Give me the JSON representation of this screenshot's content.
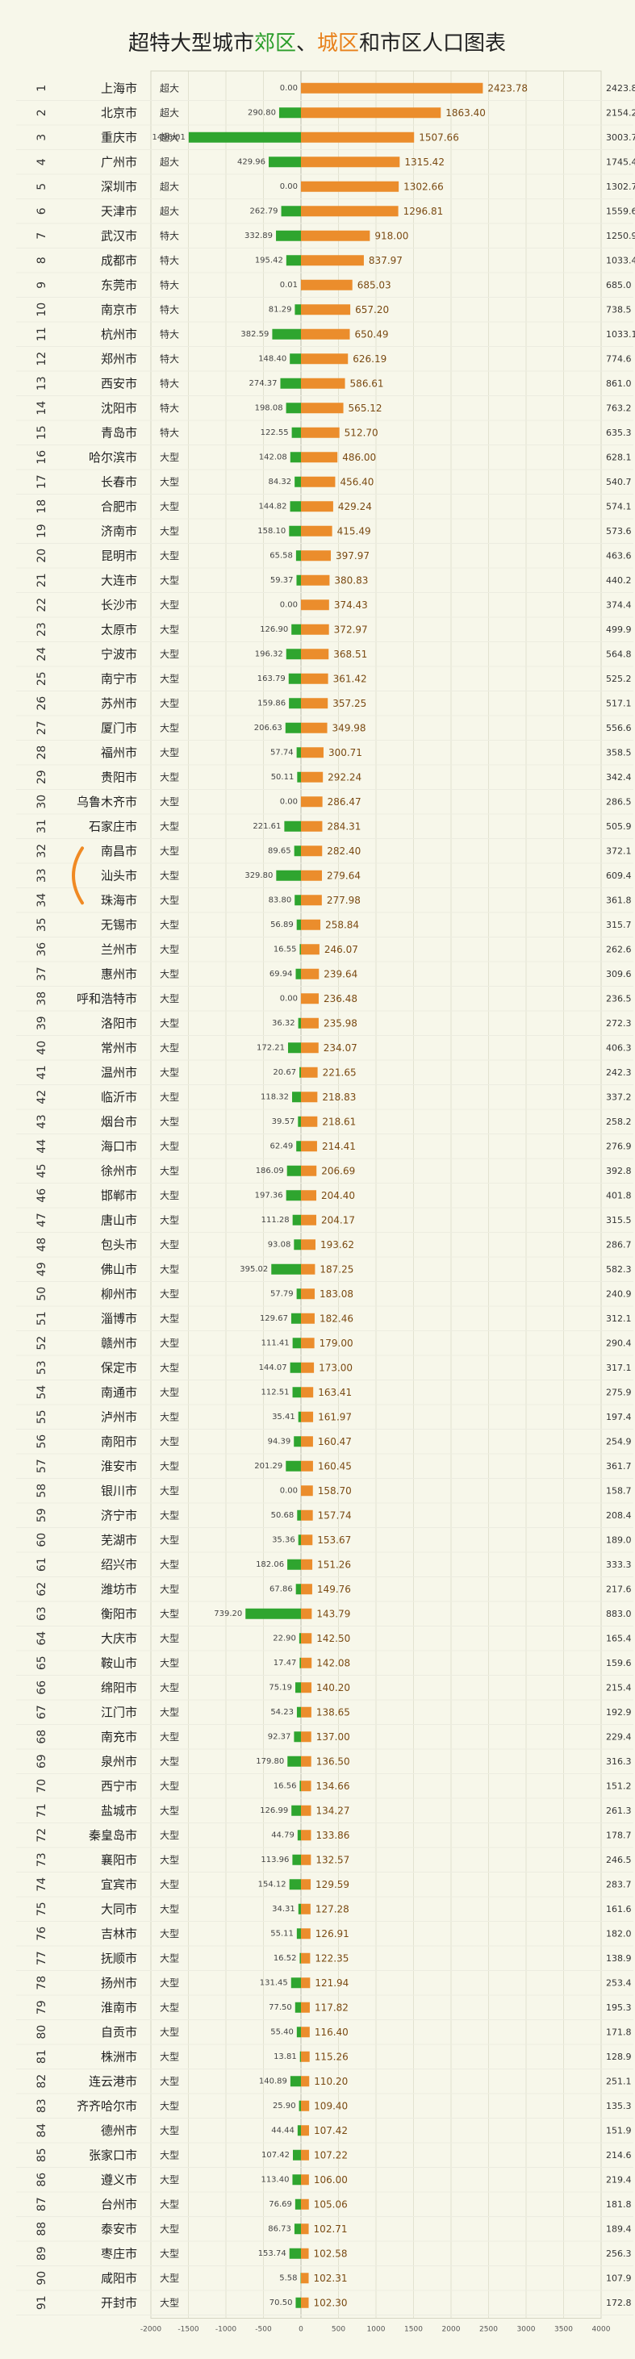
{
  "title": {
    "prefix": "超特大型城市",
    "suburb": "郊区",
    "sep": "、",
    "urban": "城区",
    "mid": "和市区人口图表"
  },
  "colors": {
    "suburb": "#2fa52f",
    "urban": "#eb8d2c",
    "background": "#f7f7ea",
    "grid": "#e2e2d0",
    "highlight": "#f08a24"
  },
  "chart_data": {
    "type": "bar",
    "orientation": "horizontal",
    "stacked": "diverging",
    "xlim": [
      -2000,
      4000
    ],
    "xticks": [
      -2000,
      -1500,
      -1000,
      -500,
      0,
      500,
      1000,
      1500,
      2000,
      2500,
      3000,
      3500,
      4000
    ],
    "grid": true,
    "highlighted_city": "汕头市",
    "columns": [
      "rank",
      "city",
      "class",
      "suburb",
      "urban",
      "total"
    ],
    "rows": [
      [
        1,
        "上海市",
        "超大",
        0.0,
        2423.78,
        2423.8
      ],
      [
        2,
        "北京市",
        "超大",
        290.8,
        1863.4,
        2154.2
      ],
      [
        3,
        "重庆市",
        "超大",
        1496.01,
        1507.66,
        3003.7
      ],
      [
        4,
        "广州市",
        "超大",
        429.96,
        1315.42,
        1745.4
      ],
      [
        5,
        "深圳市",
        "超大",
        0.0,
        1302.66,
        1302.7
      ],
      [
        6,
        "天津市",
        "超大",
        262.79,
        1296.81,
        1559.6
      ],
      [
        7,
        "武汉市",
        "特大",
        332.89,
        918.0,
        1250.9
      ],
      [
        8,
        "成都市",
        "特大",
        195.42,
        837.97,
        1033.4
      ],
      [
        9,
        "东莞市",
        "特大",
        0.01,
        685.03,
        685.0
      ],
      [
        10,
        "南京市",
        "特大",
        81.29,
        657.2,
        738.5
      ],
      [
        11,
        "杭州市",
        "特大",
        382.59,
        650.49,
        1033.1
      ],
      [
        12,
        "郑州市",
        "特大",
        148.4,
        626.19,
        774.6
      ],
      [
        13,
        "西安市",
        "特大",
        274.37,
        586.61,
        861.0
      ],
      [
        14,
        "沈阳市",
        "特大",
        198.08,
        565.12,
        763.2
      ],
      [
        15,
        "青岛市",
        "特大",
        122.55,
        512.7,
        635.3
      ],
      [
        16,
        "哈尔滨市",
        "大型",
        142.08,
        486.0,
        628.1
      ],
      [
        17,
        "长春市",
        "大型",
        84.32,
        456.4,
        540.7
      ],
      [
        18,
        "合肥市",
        "大型",
        144.82,
        429.24,
        574.1
      ],
      [
        19,
        "济南市",
        "大型",
        158.1,
        415.49,
        573.6
      ],
      [
        20,
        "昆明市",
        "大型",
        65.58,
        397.97,
        463.6
      ],
      [
        21,
        "大连市",
        "大型",
        59.37,
        380.83,
        440.2
      ],
      [
        22,
        "长沙市",
        "大型",
        0.0,
        374.43,
        374.4
      ],
      [
        23,
        "太原市",
        "大型",
        126.9,
        372.97,
        499.9
      ],
      [
        24,
        "宁波市",
        "大型",
        196.32,
        368.51,
        564.8
      ],
      [
        25,
        "南宁市",
        "大型",
        163.79,
        361.42,
        525.2
      ],
      [
        26,
        "苏州市",
        "大型",
        159.86,
        357.25,
        517.1
      ],
      [
        27,
        "厦门市",
        "大型",
        206.63,
        349.98,
        556.6
      ],
      [
        28,
        "福州市",
        "大型",
        57.74,
        300.71,
        358.5
      ],
      [
        29,
        "贵阳市",
        "大型",
        50.11,
        292.24,
        342.4
      ],
      [
        30,
        "乌鲁木齐市",
        "大型",
        0.0,
        286.47,
        286.5
      ],
      [
        31,
        "石家庄市",
        "大型",
        221.61,
        284.31,
        505.9
      ],
      [
        32,
        "南昌市",
        "大型",
        89.65,
        282.4,
        372.1
      ],
      [
        33,
        "汕头市",
        "大型",
        329.8,
        279.64,
        609.4
      ],
      [
        34,
        "珠海市",
        "大型",
        83.8,
        277.98,
        361.8
      ],
      [
        35,
        "无锡市",
        "大型",
        56.89,
        258.84,
        315.7
      ],
      [
        36,
        "兰州市",
        "大型",
        16.55,
        246.07,
        262.6
      ],
      [
        37,
        "惠州市",
        "大型",
        69.94,
        239.64,
        309.6
      ],
      [
        38,
        "呼和浩特市",
        "大型",
        0.0,
        236.48,
        236.5
      ],
      [
        39,
        "洛阳市",
        "大型",
        36.32,
        235.98,
        272.3
      ],
      [
        40,
        "常州市",
        "大型",
        172.21,
        234.07,
        406.3
      ],
      [
        41,
        "温州市",
        "大型",
        20.67,
        221.65,
        242.3
      ],
      [
        42,
        "临沂市",
        "大型",
        118.32,
        218.83,
        337.2
      ],
      [
        43,
        "烟台市",
        "大型",
        39.57,
        218.61,
        258.2
      ],
      [
        44,
        "海口市",
        "大型",
        62.49,
        214.41,
        276.9
      ],
      [
        45,
        "徐州市",
        "大型",
        186.09,
        206.69,
        392.8
      ],
      [
        46,
        "邯郸市",
        "大型",
        197.36,
        204.4,
        401.8
      ],
      [
        47,
        "唐山市",
        "大型",
        111.28,
        204.17,
        315.5
      ],
      [
        48,
        "包头市",
        "大型",
        93.08,
        193.62,
        286.7
      ],
      [
        49,
        "佛山市",
        "大型",
        395.02,
        187.25,
        582.3
      ],
      [
        50,
        "柳州市",
        "大型",
        57.79,
        183.08,
        240.9
      ],
      [
        51,
        "淄博市",
        "大型",
        129.67,
        182.46,
        312.1
      ],
      [
        52,
        "赣州市",
        "大型",
        111.41,
        179.0,
        290.4
      ],
      [
        53,
        "保定市",
        "大型",
        144.07,
        173.0,
        317.1
      ],
      [
        54,
        "南通市",
        "大型",
        112.51,
        163.41,
        275.9
      ],
      [
        55,
        "泸州市",
        "大型",
        35.41,
        161.97,
        197.4
      ],
      [
        56,
        "南阳市",
        "大型",
        94.39,
        160.47,
        254.9
      ],
      [
        57,
        "淮安市",
        "大型",
        201.29,
        160.45,
        361.7
      ],
      [
        58,
        "银川市",
        "大型",
        0.0,
        158.7,
        158.7
      ],
      [
        59,
        "济宁市",
        "大型",
        50.68,
        157.74,
        208.4
      ],
      [
        60,
        "芜湖市",
        "大型",
        35.36,
        153.67,
        189.0
      ],
      [
        61,
        "绍兴市",
        "大型",
        182.06,
        151.26,
        333.3
      ],
      [
        62,
        "潍坊市",
        "大型",
        67.86,
        149.76,
        217.6
      ],
      [
        63,
        "衡阳市",
        "大型",
        739.2,
        143.79,
        883.0
      ],
      [
        64,
        "大庆市",
        "大型",
        22.9,
        142.5,
        165.4
      ],
      [
        65,
        "鞍山市",
        "大型",
        17.47,
        142.08,
        159.6
      ],
      [
        66,
        "绵阳市",
        "大型",
        75.19,
        140.2,
        215.4
      ],
      [
        67,
        "江门市",
        "大型",
        54.23,
        138.65,
        192.9
      ],
      [
        68,
        "南充市",
        "大型",
        92.37,
        137.0,
        229.4
      ],
      [
        69,
        "泉州市",
        "大型",
        179.8,
        136.5,
        316.3
      ],
      [
        70,
        "西宁市",
        "大型",
        16.56,
        134.66,
        151.2
      ],
      [
        71,
        "盐城市",
        "大型",
        126.99,
        134.27,
        261.3
      ],
      [
        72,
        "秦皇岛市",
        "大型",
        44.79,
        133.86,
        178.7
      ],
      [
        73,
        "襄阳市",
        "大型",
        113.96,
        132.57,
        246.5
      ],
      [
        74,
        "宜宾市",
        "大型",
        154.12,
        129.59,
        283.7
      ],
      [
        75,
        "大同市",
        "大型",
        34.31,
        127.28,
        161.6
      ],
      [
        76,
        "吉林市",
        "大型",
        55.11,
        126.91,
        182.0
      ],
      [
        77,
        "抚顺市",
        "大型",
        16.52,
        122.35,
        138.9
      ],
      [
        78,
        "扬州市",
        "大型",
        131.45,
        121.94,
        253.4
      ],
      [
        79,
        "淮南市",
        "大型",
        77.5,
        117.82,
        195.3
      ],
      [
        80,
        "自贡市",
        "大型",
        55.4,
        116.4,
        171.8
      ],
      [
        81,
        "株洲市",
        "大型",
        13.81,
        115.26,
        128.9
      ],
      [
        82,
        "连云港市",
        "大型",
        140.89,
        110.2,
        251.1
      ],
      [
        83,
        "齐齐哈尔市",
        "大型",
        25.9,
        109.4,
        135.3
      ],
      [
        84,
        "德州市",
        "大型",
        44.44,
        107.42,
        151.9
      ],
      [
        85,
        "张家口市",
        "大型",
        107.42,
        107.22,
        214.6
      ],
      [
        86,
        "遵义市",
        "大型",
        113.4,
        106.0,
        219.4
      ],
      [
        87,
        "台州市",
        "大型",
        76.69,
        105.06,
        181.8
      ],
      [
        88,
        "泰安市",
        "大型",
        86.73,
        102.71,
        189.4
      ],
      [
        89,
        "枣庄市",
        "大型",
        153.74,
        102.58,
        256.3
      ],
      [
        90,
        "咸阳市",
        "大型",
        5.58,
        102.31,
        107.9
      ],
      [
        91,
        "开封市",
        "大型",
        70.5,
        102.3,
        172.8
      ]
    ]
  }
}
